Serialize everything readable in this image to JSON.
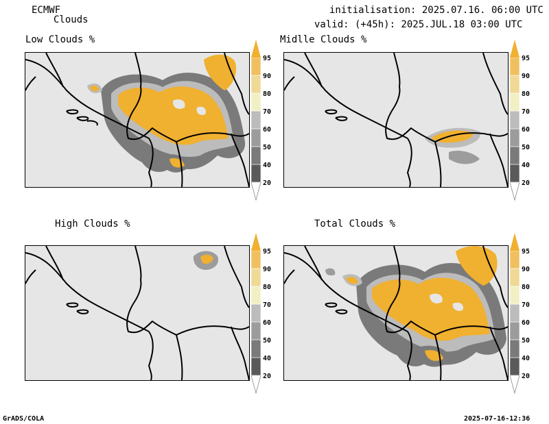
{
  "header": {
    "model": "ECMWF",
    "product": "Clouds",
    "initialisation": "initialisation: 2025.07.16. 06:00 UTC",
    "valid": "valid: (+45h): 2025.JUL.18 03:00 UTC"
  },
  "panels": [
    {
      "title": "Low Clouds %"
    },
    {
      "title": "Midlle Clouds %"
    },
    {
      "title": "High Clouds %"
    },
    {
      "title": "Total Clouds %"
    }
  ],
  "colorbar": {
    "labels": [
      "20",
      "40",
      "50",
      "60",
      "70",
      "80",
      "90",
      "95"
    ],
    "colors": {
      "c0": "#ffffff",
      "c1": "#5a5a5a",
      "c2": "#7a7a7a",
      "c3": "#9c9c9c",
      "c4": "#bcbcbc",
      "c5": "#f0f0c4",
      "c6": "#f0d896",
      "c7": "#f0c060",
      "c8": "#f0b030"
    }
  },
  "footer": {
    "left": "GrADS/COLA",
    "right": "2025-07-16-12:36"
  }
}
